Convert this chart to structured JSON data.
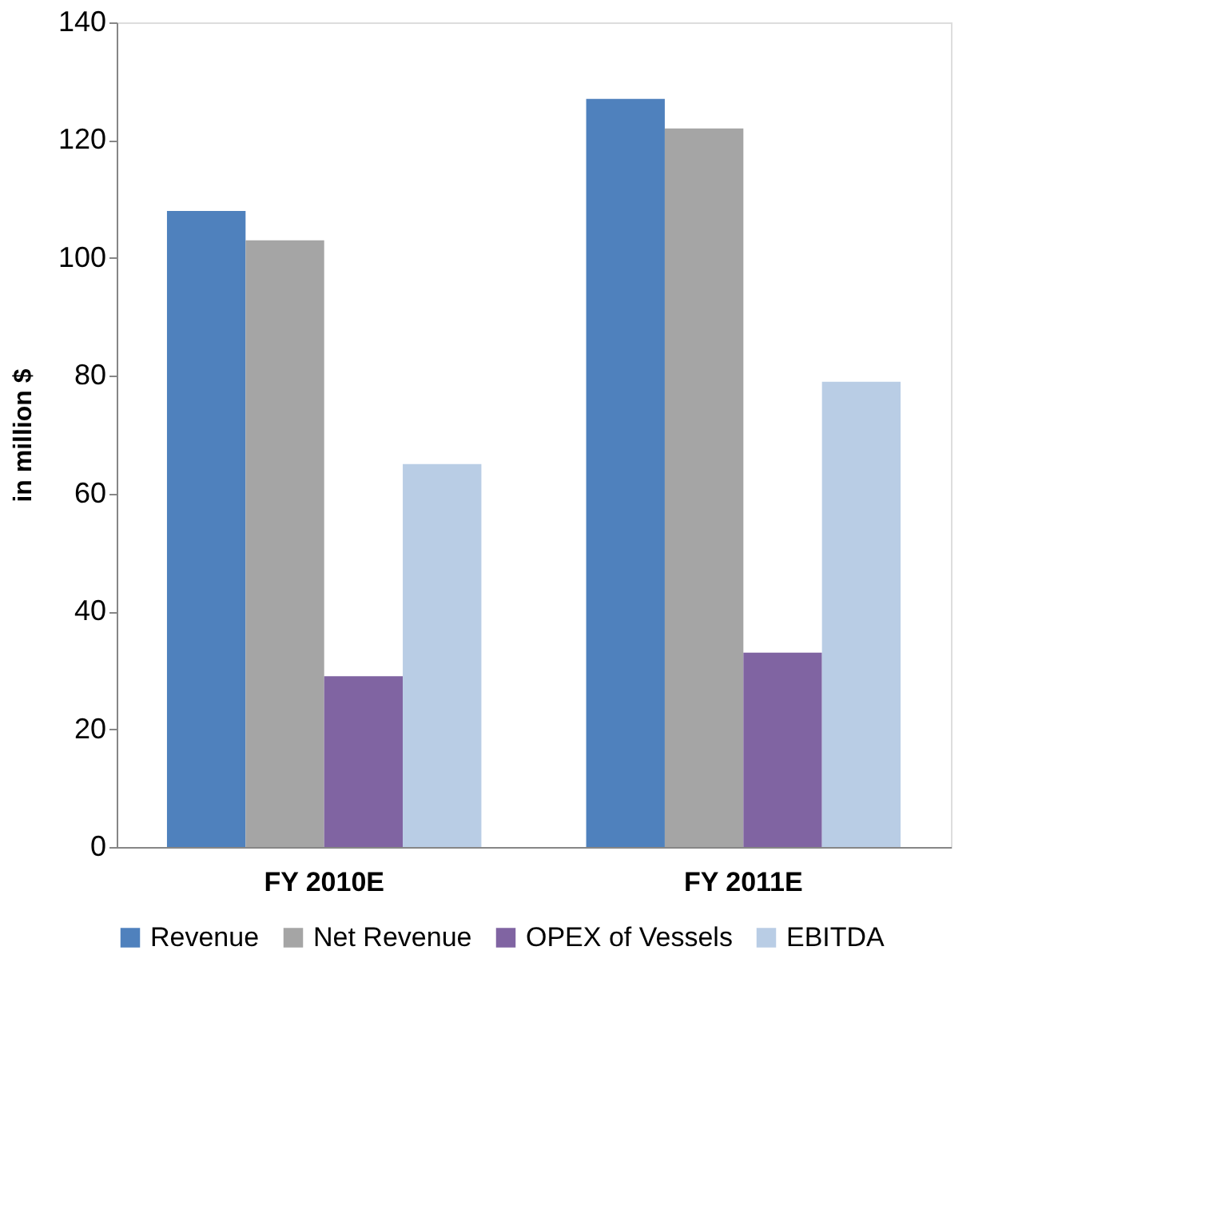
{
  "chart_data": {
    "type": "bar",
    "ylabel": "in million $",
    "categories": [
      "FY 2010E",
      "FY 2011E"
    ],
    "series": [
      {
        "name": "Revenue",
        "color": "#4f81bd",
        "values": [
          108,
          127
        ]
      },
      {
        "name": "Net Revenue",
        "color": "#a5a5a5",
        "values": [
          103,
          122
        ]
      },
      {
        "name": "OPEX of Vessels",
        "color": "#8064a2",
        "values": [
          29,
          33
        ]
      },
      {
        "name": "EBITDA",
        "color": "#b9cde5",
        "values": [
          65,
          79
        ]
      }
    ],
    "ylim": [
      0,
      140
    ],
    "yticks": [
      0,
      20,
      40,
      60,
      80,
      100,
      120,
      140
    ],
    "grid": false,
    "legend": "bottom"
  }
}
